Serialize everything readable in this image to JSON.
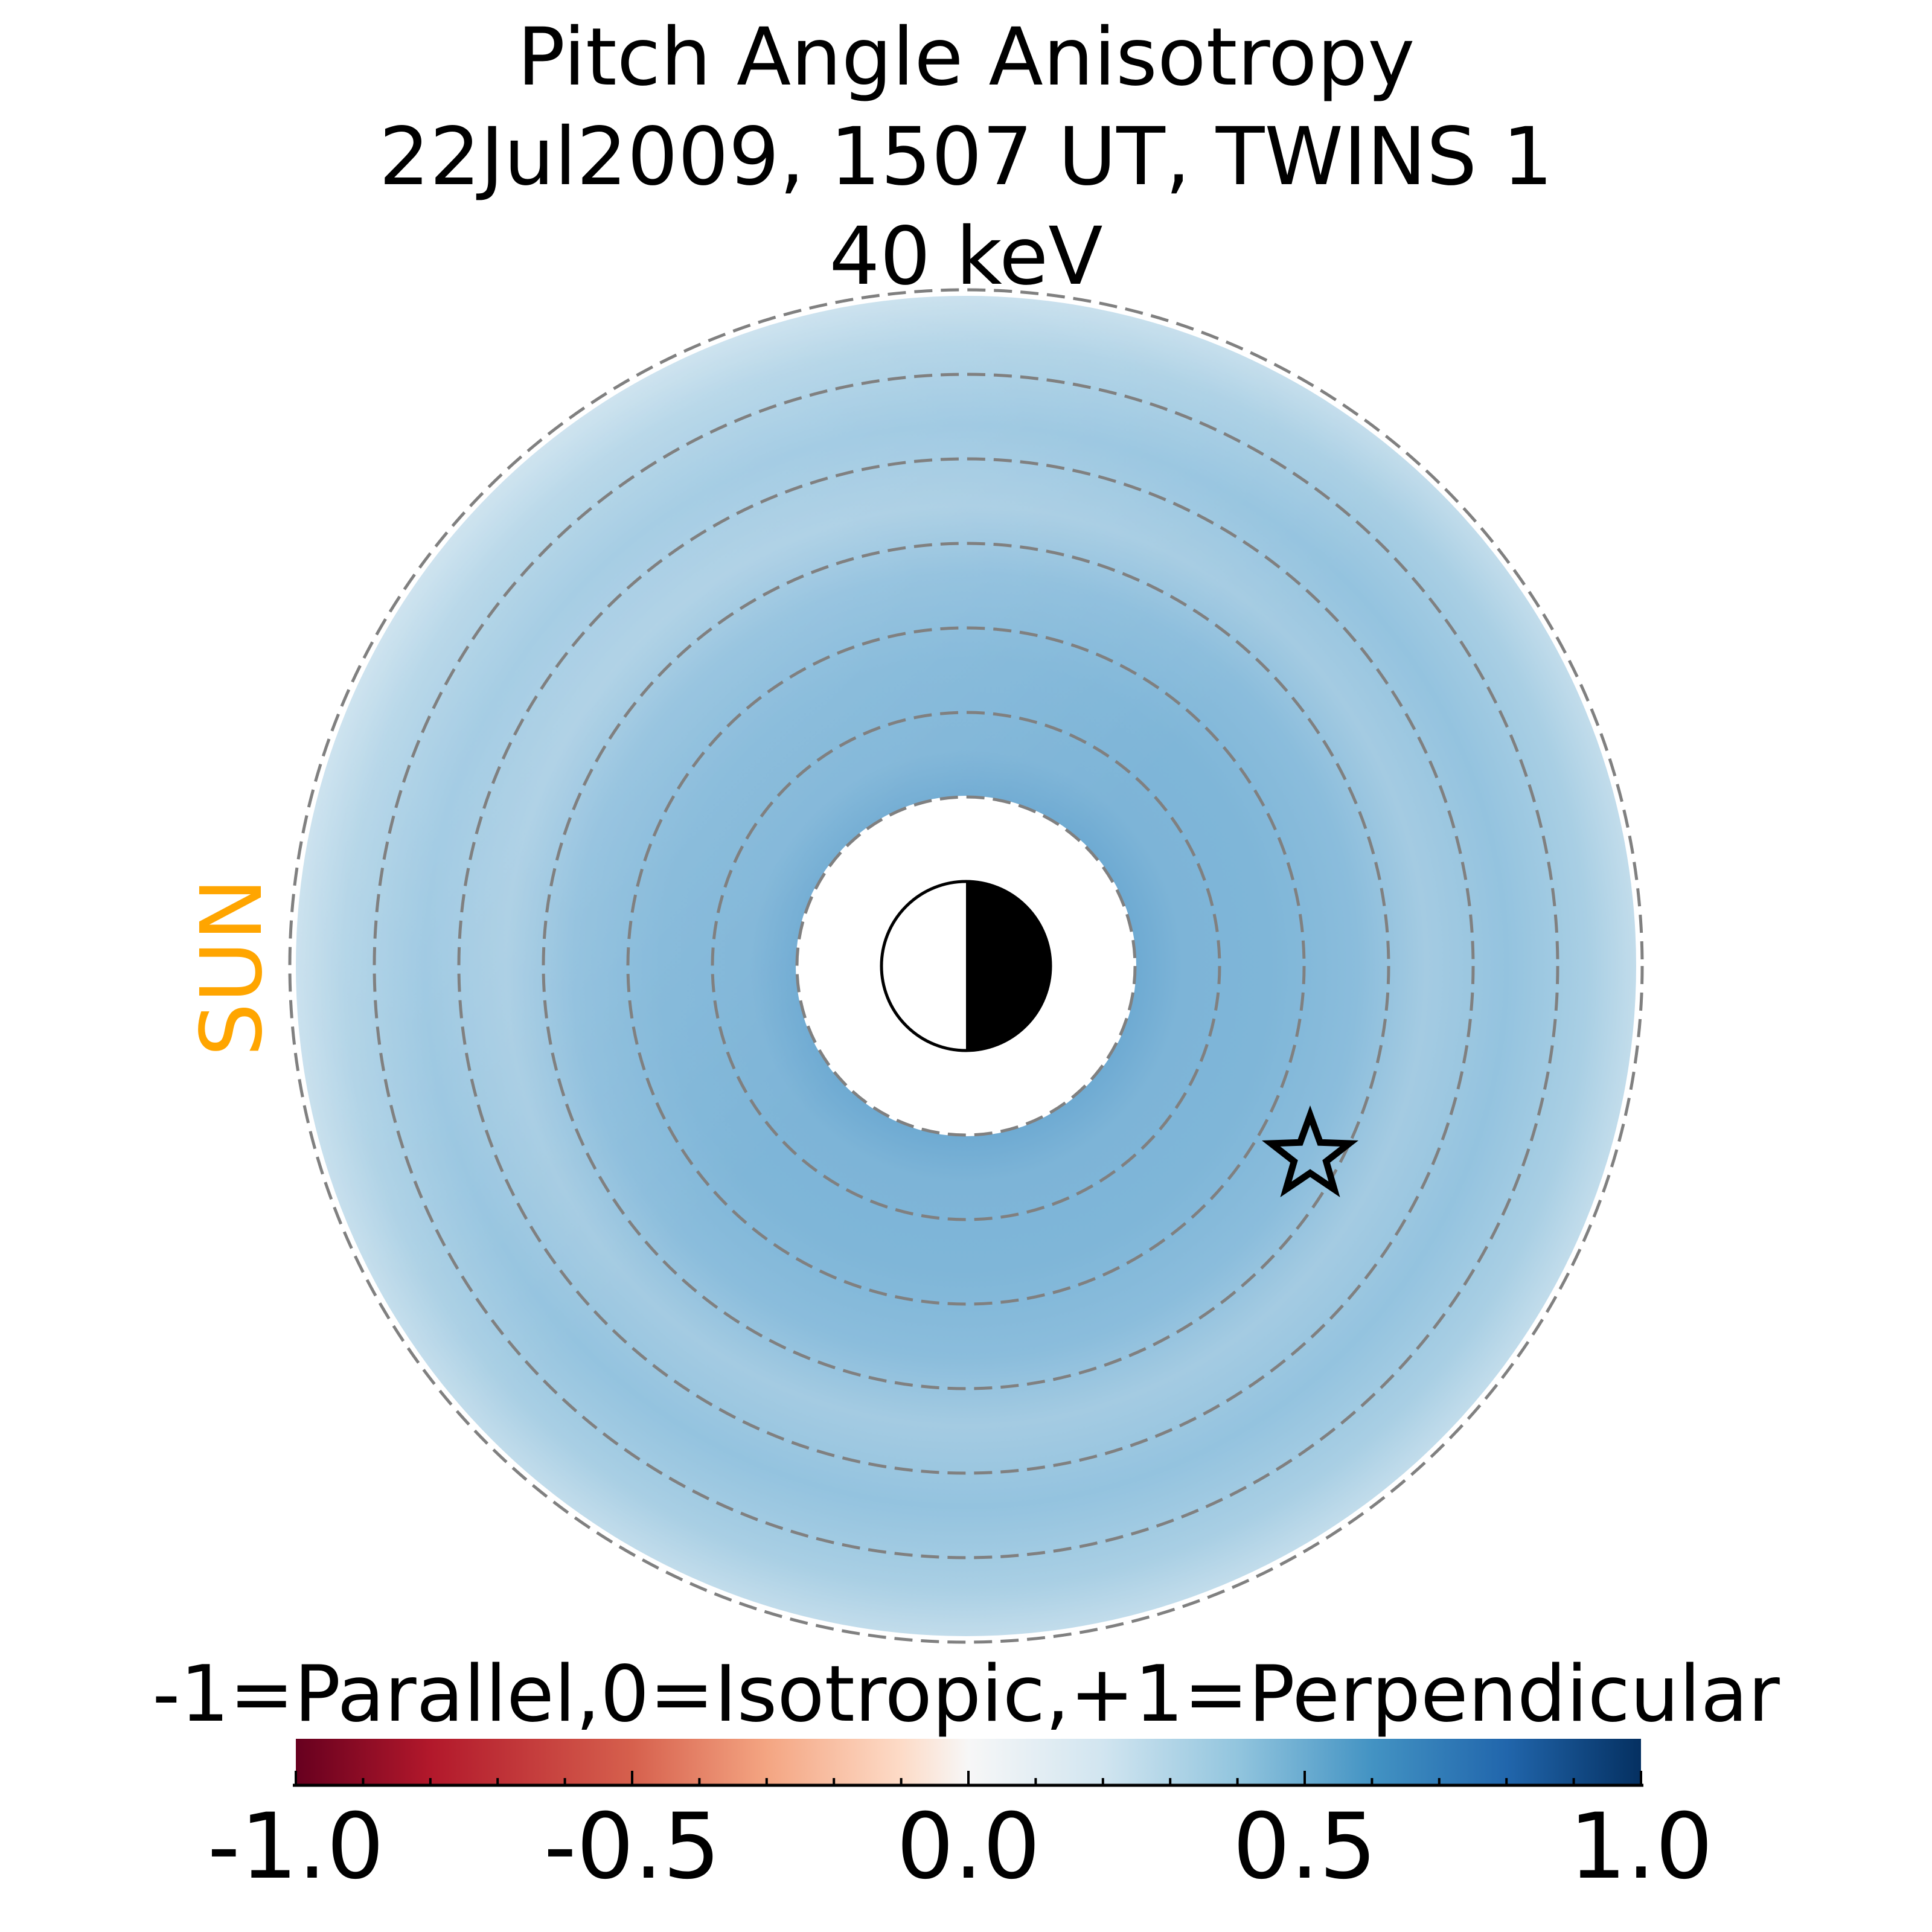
{
  "chart_data": {
    "type": "heatmap",
    "projection": "polar equatorial map centered on Earth",
    "title": [
      "Pitch Angle Anisotropy",
      "22Jul2009, 1507 UT,  TWINS 1",
      "40 keV"
    ],
    "sun_label": "SUN",
    "sun_direction": "left",
    "radial_grid_RE": [
      2,
      3,
      4,
      5,
      6,
      7,
      8
    ],
    "inner_boundary_RE": 2,
    "outer_boundary_RE": 8,
    "radial_profile": [
      {
        "r_RE": 2.0,
        "value": 0.55
      },
      {
        "r_RE": 2.5,
        "value": 0.52
      },
      {
        "r_RE": 3.5,
        "value": 0.45
      },
      {
        "r_RE": 4.5,
        "value": 0.42
      },
      {
        "r_RE": 5.5,
        "value": 0.36
      },
      {
        "r_RE": 6.5,
        "value": 0.4
      },
      {
        "r_RE": 7.5,
        "value": 0.32
      },
      {
        "r_RE": 8.0,
        "value": 0.25
      }
    ],
    "marker": {
      "type": "star",
      "label": "spacecraft position"
    },
    "colorbar": {
      "label": "-1=Parallel,0=Isotropic,+1=Perpendicular",
      "colormap": "RdBu",
      "range": [
        -1.0,
        1.0
      ],
      "ticks": [
        "-1.0",
        "-0.5",
        "0.0",
        "0.5",
        "1.0"
      ],
      "tick_values": [
        -1.0,
        -0.5,
        0.0,
        0.5,
        1.0
      ]
    }
  }
}
